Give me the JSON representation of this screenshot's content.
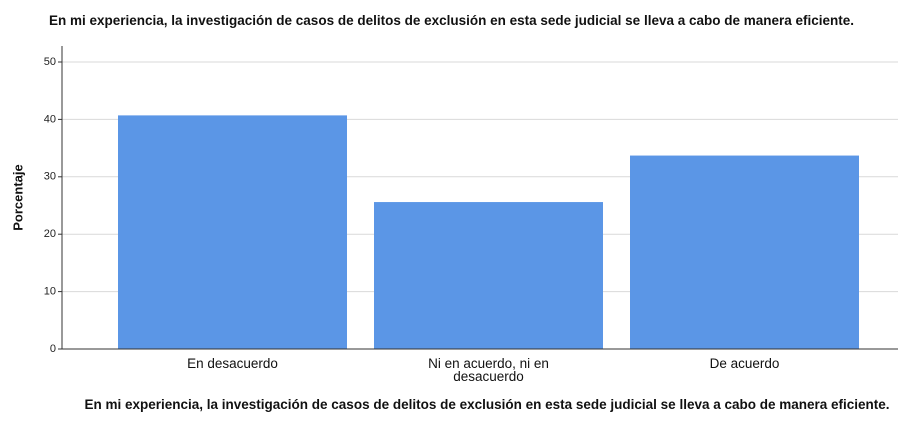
{
  "chart_data": {
    "type": "bar",
    "title": "En mi experiencia, la investigación de casos de delitos de exclusión en esta sede judicial se lleva a cabo de manera eficiente.",
    "x_label": "En mi experiencia, la investigación de casos de delitos de exclusión en esta sede judicial se lleva a cabo de manera eficiente.",
    "y_label": "Porcentaje",
    "categories": [
      "En desacuerdo",
      "Ni en acuerdo, ni en desacuerdo",
      "De acuerdo"
    ],
    "values": [
      40.7,
      25.6,
      33.7
    ],
    "color": "#5b96e6",
    "ylim": [
      0,
      50
    ],
    "yticks": [
      0,
      10,
      20,
      30,
      40,
      50
    ],
    "grid": true
  }
}
